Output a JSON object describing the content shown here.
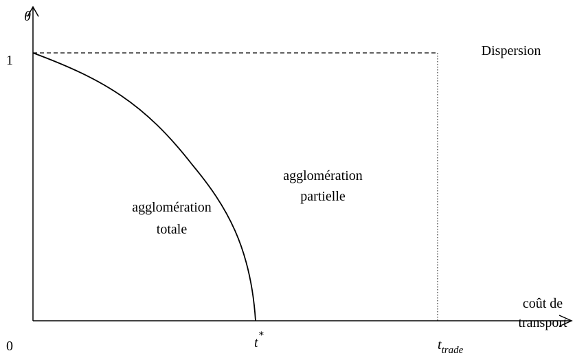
{
  "axes": {
    "y_label": "θ",
    "y_tick": "1",
    "origin": "0",
    "x_label": [
      "coût de",
      "transport"
    ]
  },
  "regions": {
    "dispersion": "Dispersion",
    "partial": [
      "agglomération",
      "partielle"
    ],
    "total": [
      "agglomération",
      "totale"
    ]
  },
  "x_marks": {
    "t_star": {
      "base": "t",
      "sup": "*"
    },
    "t_trade": {
      "base": "t",
      "sub": "trade"
    }
  }
}
